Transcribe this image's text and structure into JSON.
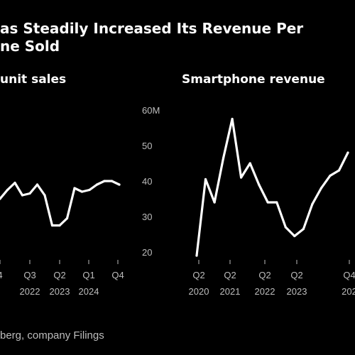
{
  "headline": {
    "line1": "as Steadily Increased Its Revenue Per",
    "line2": "ne Sold"
  },
  "source": "berg, company Filings",
  "chart_data": [
    {
      "type": "line",
      "title": "unit sales",
      "x_ticks": [
        {
          "top": "4",
          "bottom": ""
        },
        {
          "top": "Q3",
          "bottom": "2022"
        },
        {
          "top": "Q2",
          "bottom": "2023"
        },
        {
          "top": "Q1",
          "bottom": "2024"
        },
        {
          "top": "Q4",
          "bottom": ""
        }
      ],
      "ylim": [
        18,
        62
      ],
      "line_color": "#ffffff",
      "series": [
        {
          "values": [
            35.0,
            37.5,
            39.5,
            36.0,
            36.5,
            39.0,
            36.0,
            27.5,
            27.5,
            29.5,
            38.0,
            37.0,
            37.5,
            39.0,
            40.0,
            40.0,
            39.0
          ]
        }
      ]
    },
    {
      "type": "line",
      "title": "Smartphone revenue",
      "ytick_labels": [
        "60M",
        "50",
        "40",
        "30",
        "20"
      ],
      "ytick_values": [
        60,
        50,
        40,
        30,
        20
      ],
      "x_ticks": [
        {
          "top": "Q2",
          "bottom": "2020"
        },
        {
          "top": "Q2",
          "bottom": "2021"
        },
        {
          "top": "Q2",
          "bottom": "2022"
        },
        {
          "top": "Q2",
          "bottom": "2023"
        },
        {
          "top": "Q4",
          "bottom": "202"
        }
      ],
      "ylim": [
        18,
        62
      ],
      "line_color": "#ffffff",
      "series": [
        {
          "values": [
            19.0,
            40.5,
            34.0,
            46.5,
            57.5,
            41.0,
            45.0,
            39.0,
            34.0,
            34.0,
            27.0,
            24.5,
            26.5,
            33.5,
            38.0,
            41.5,
            43.0,
            48.0
          ]
        }
      ]
    }
  ]
}
